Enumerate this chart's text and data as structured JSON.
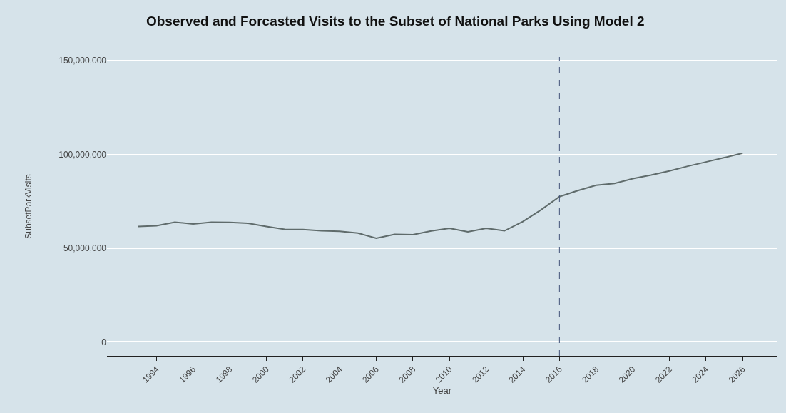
{
  "chart_data": {
    "type": "line",
    "title": "Observed and Forcasted Visits to the Subset of National Parks Using Model 2",
    "xlabel": "Year",
    "ylabel": "SubsetParkVisits",
    "x": [
      1993,
      1994,
      1995,
      1996,
      1997,
      1998,
      1999,
      2000,
      2001,
      2002,
      2003,
      2004,
      2005,
      2006,
      2007,
      2008,
      2009,
      2010,
      2011,
      2012,
      2013,
      2014,
      2015,
      2016,
      2017,
      2018,
      2019,
      2020,
      2021,
      2022,
      2023,
      2024,
      2025,
      2026
    ],
    "series": [
      {
        "color": "#5f6b6b",
        "values": [
          61600000,
          62000000,
          63900000,
          62900000,
          63900000,
          63800000,
          63300000,
          61600000,
          60100000,
          60000000,
          59300000,
          59000000,
          58100000,
          55300000,
          57400000,
          57200000,
          59200000,
          60600000,
          58700000,
          60600000,
          59300000,
          64200000,
          70500000,
          77500000,
          80700000,
          83600000,
          84500000,
          87100000,
          89000000,
          91200000,
          93700000,
          96000000,
          98300000,
          100700000
        ]
      }
    ],
    "xlim": [
      1991.3,
      2027.9
    ],
    "xticks": [
      1994,
      1996,
      1998,
      2000,
      2002,
      2004,
      2006,
      2008,
      2010,
      2012,
      2014,
      2016,
      2018,
      2020,
      2022,
      2024,
      2026
    ],
    "ylim": [
      -7500000,
      152000000
    ],
    "yticks": [
      {
        "value": 0,
        "label": "0"
      },
      {
        "value": 50000000,
        "label": "50,000,000"
      },
      {
        "value": 100000000,
        "label": "100,000,000"
      },
      {
        "value": 150000000,
        "label": "150,000,000"
      }
    ],
    "grid": "y",
    "line_style": "solid",
    "marker": "none",
    "ref_lines": [
      {
        "axis": "x",
        "value": 2016,
        "color": "#44557a",
        "line_style": "dashed"
      }
    ]
  }
}
